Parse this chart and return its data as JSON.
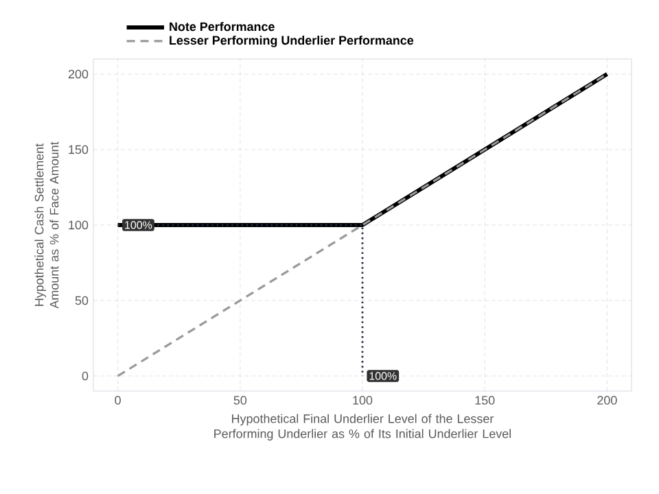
{
  "chart_data": {
    "type": "line",
    "xlabel": "Hypothetical Final Underlier Level of the Lesser Performing Underlier as % of Its Initial Underlier Level",
    "ylabel": "Hypothetical Cash Settlement Amount as % of Face Amount",
    "series": [
      {
        "name": "Note Performance",
        "color": "#000000",
        "line_style": "solid",
        "x": [
          0,
          100,
          200
        ],
        "values": [
          100,
          100,
          200
        ]
      },
      {
        "name": "Lesser Performing Underlier Performance",
        "color": "#999999",
        "line_style": "dashed",
        "x": [
          0,
          200
        ],
        "values": [
          0,
          200
        ]
      },
      {
        "color": "#1f2a44",
        "line_style": "dotted",
        "x": [
          0,
          100,
          100
        ],
        "values": [
          100,
          100,
          0
        ]
      }
    ],
    "annotations": [
      {
        "text": "100%",
        "x": 0,
        "y": 100
      },
      {
        "text": "100%",
        "x": 100,
        "y": 0
      }
    ],
    "xlim": [
      -10,
      210
    ],
    "ylim": [
      -10,
      210
    ],
    "xticks": [
      0,
      50,
      100,
      150,
      200
    ],
    "yticks": [
      0,
      50,
      100,
      150,
      200
    ],
    "grid": true,
    "legend": "top left"
  }
}
